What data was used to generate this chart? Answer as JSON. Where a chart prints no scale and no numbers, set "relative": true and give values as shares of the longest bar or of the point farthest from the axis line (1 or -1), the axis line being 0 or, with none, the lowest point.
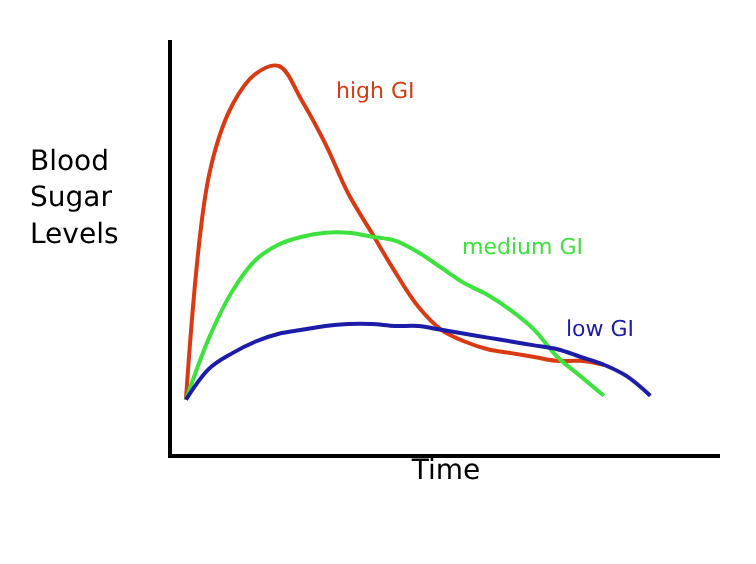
{
  "chart_data": {
    "type": "line",
    "relative": true,
    "xlabel": "Time",
    "ylabel": "Blood Sugar Levels",
    "legend": false,
    "tick_labels": false,
    "marker": "none",
    "line_style": "solid",
    "categories": [
      null,
      null,
      null,
      null,
      null,
      null,
      null,
      null,
      null,
      null,
      null,
      null,
      null,
      null,
      null,
      null,
      null,
      null,
      null,
      null,
      null
    ],
    "series": [
      {
        "name": "high GI",
        "color": "#d93a12",
        "values": [
          0.14,
          0.72,
          0.9,
          0.98,
          1.0,
          0.91,
          0.8,
          0.67,
          0.57,
          0.47,
          0.38,
          0.32,
          0.29,
          0.27,
          0.26,
          0.25,
          0.24,
          0.24,
          0.23,
          null,
          null
        ]
      },
      {
        "name": "medium GI",
        "color": "#3ee23e",
        "values": [
          0.14,
          0.3,
          0.42,
          0.5,
          0.54,
          0.56,
          0.57,
          0.57,
          0.56,
          0.55,
          0.52,
          0.48,
          0.44,
          0.41,
          0.37,
          0.32,
          0.25,
          0.2,
          0.15,
          null,
          null
        ]
      },
      {
        "name": "low GI",
        "color": "#1c1ca8",
        "values": [
          0.14,
          0.22,
          0.26,
          0.29,
          0.31,
          0.32,
          0.33,
          0.335,
          0.335,
          0.33,
          0.33,
          0.32,
          0.31,
          0.3,
          0.29,
          0.28,
          0.27,
          0.25,
          0.23,
          0.2,
          0.15
        ]
      }
    ]
  }
}
